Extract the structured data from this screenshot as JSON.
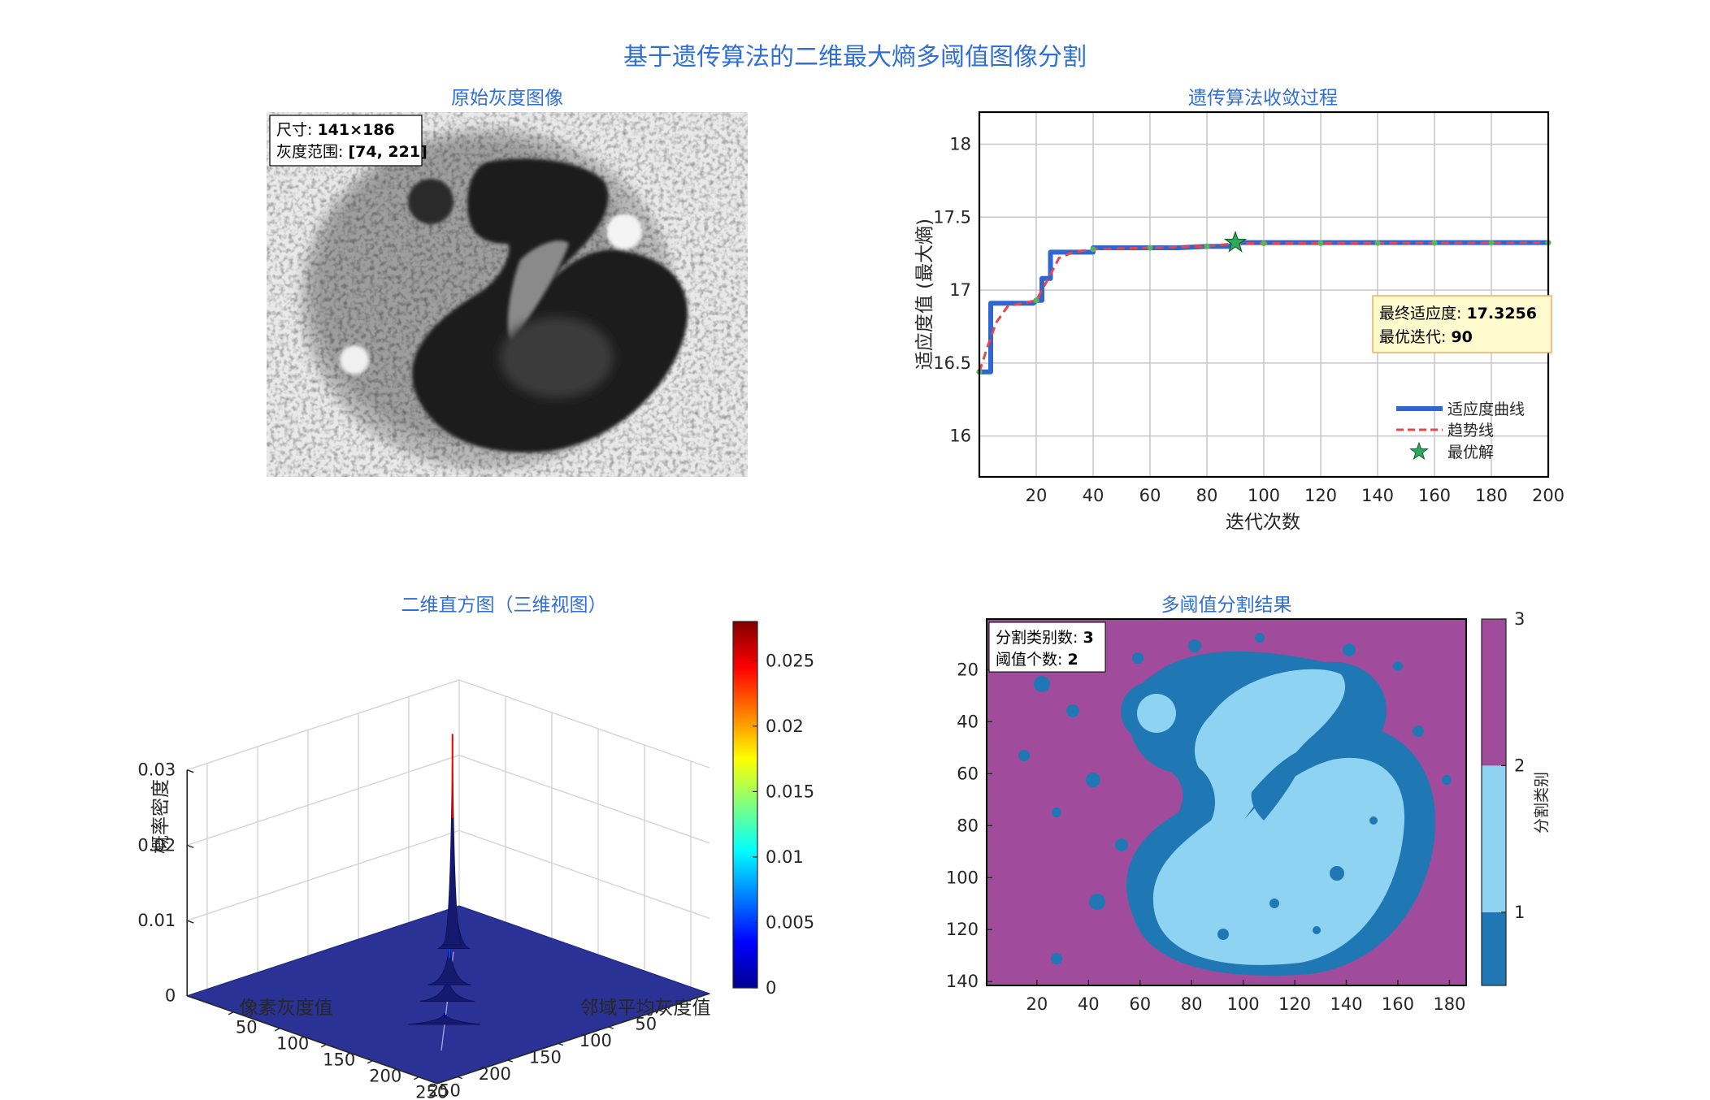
{
  "figure": {
    "title": "基于遗传算法的二维最大熵多阈值图像分割"
  },
  "panel_image": {
    "title": "原始灰度图像",
    "info_size_label": "尺寸: ",
    "info_size_value": "141×186",
    "info_range_label": "灰度范围: ",
    "info_range_value": "[74, 221]"
  },
  "colors": {
    "title_blue": "#2f6fd6",
    "fitness_line": "#2f66d0",
    "trend_line": "#e3474f",
    "best_star": "#2ea85a",
    "class1": "#1f78b4",
    "class2": "#8fd3f2",
    "class3": "#a04b9c",
    "surface_floor": "#2b3296",
    "annotation_bg": "#fffacd",
    "annotation_border": "#e8b165"
  },
  "chart_data": [
    {
      "type": "line",
      "title": "遗传算法收敛过程",
      "xlabel": "迭代次数",
      "ylabel": "适应度值 (最大熵)",
      "xlim": [
        0,
        200
      ],
      "ylim": [
        15.72,
        18.22
      ],
      "xticks": [
        20,
        40,
        60,
        80,
        100,
        120,
        140,
        160,
        180,
        200
      ],
      "yticks": [
        16,
        16.5,
        17,
        17.5,
        18
      ],
      "grid": true,
      "legend_position": "bottom-right",
      "series": [
        {
          "name": "适应度曲线",
          "style": "solid",
          "points": [
            [
              0,
              16.44
            ],
            [
              4,
              16.44
            ],
            [
              4,
              16.91
            ],
            [
              19,
              16.91
            ],
            [
              20,
              16.93
            ],
            [
              22,
              16.93
            ],
            [
              22,
              17.08
            ],
            [
              25,
              17.08
            ],
            [
              25,
              17.26
            ],
            [
              40,
              17.26
            ],
            [
              40,
              17.29
            ],
            [
              70,
              17.29
            ],
            [
              80,
              17.3
            ],
            [
              88,
              17.3
            ],
            [
              90,
              17.3256
            ],
            [
              200,
              17.3256
            ]
          ]
        },
        {
          "name": "趋势线",
          "style": "dashed",
          "points": [
            [
              0,
              16.44
            ],
            [
              3,
              16.62
            ],
            [
              6,
              16.78
            ],
            [
              10,
              16.89
            ],
            [
              15,
              16.91
            ],
            [
              20,
              16.93
            ],
            [
              24,
              17.07
            ],
            [
              28,
              17.22
            ],
            [
              33,
              17.26
            ],
            [
              40,
              17.28
            ],
            [
              60,
              17.29
            ],
            [
              80,
              17.3
            ],
            [
              90,
              17.32
            ],
            [
              200,
              17.3256
            ]
          ],
          "markers_x": [
            0,
            20,
            40,
            60,
            80,
            100,
            120,
            140,
            160,
            180,
            200
          ]
        },
        {
          "name": "最优解",
          "style": "star",
          "points": [
            [
              90,
              17.3256
            ]
          ]
        }
      ],
      "annotation": {
        "final_fitness_label": "最终适应度: ",
        "final_fitness_value": "17.3256",
        "best_iter_label": "最优迭代: ",
        "best_iter_value": "90"
      }
    },
    {
      "type": "surface3d",
      "title": "二维直方图（三维视图）",
      "xlabel": "像素灰度值",
      "ylabel": "邻域平均灰度值",
      "zlabel": "概率密度",
      "xticks": [
        50,
        100,
        150,
        200,
        250
      ],
      "yticks": [
        50,
        100,
        150,
        200,
        250
      ],
      "zlim": [
        0,
        0.03
      ],
      "zticks": [
        0,
        0.01,
        0.02,
        0.03
      ],
      "colorbar": {
        "colormap": "jet",
        "range": [
          0,
          0.028
        ],
        "ticks": [
          0,
          0.005,
          0.01,
          0.015,
          0.02,
          0.025
        ]
      },
      "peaks": [
        {
          "x": 210,
          "y": 212,
          "z": 0.028
        },
        {
          "x": 205,
          "y": 205,
          "z": 0.0105
        },
        {
          "x": 150,
          "y": 150,
          "z": 0.006
        },
        {
          "x": 125,
          "y": 125,
          "z": 0.0035
        },
        {
          "x": 90,
          "y": 90,
          "z": 0.0015
        }
      ]
    },
    {
      "type": "heatmap",
      "title": "多阈值分割结果",
      "xlim": [
        1,
        186
      ],
      "ylim": [
        1,
        141
      ],
      "xticks": [
        20,
        40,
        60,
        80,
        100,
        120,
        140,
        160,
        180
      ],
      "yticks": [
        20,
        40,
        60,
        80,
        100,
        120,
        140
      ],
      "colorbar": {
        "label": "分割类别",
        "range": [
          0.5,
          3
        ],
        "ticks": [
          1,
          2,
          3
        ]
      },
      "classes": [
        1,
        2,
        3
      ],
      "annotation": {
        "class_count_label": "分割类别数: ",
        "class_count_value": "3",
        "threshold_count_label": "阈值个数: ",
        "threshold_count_value": "2"
      }
    }
  ]
}
